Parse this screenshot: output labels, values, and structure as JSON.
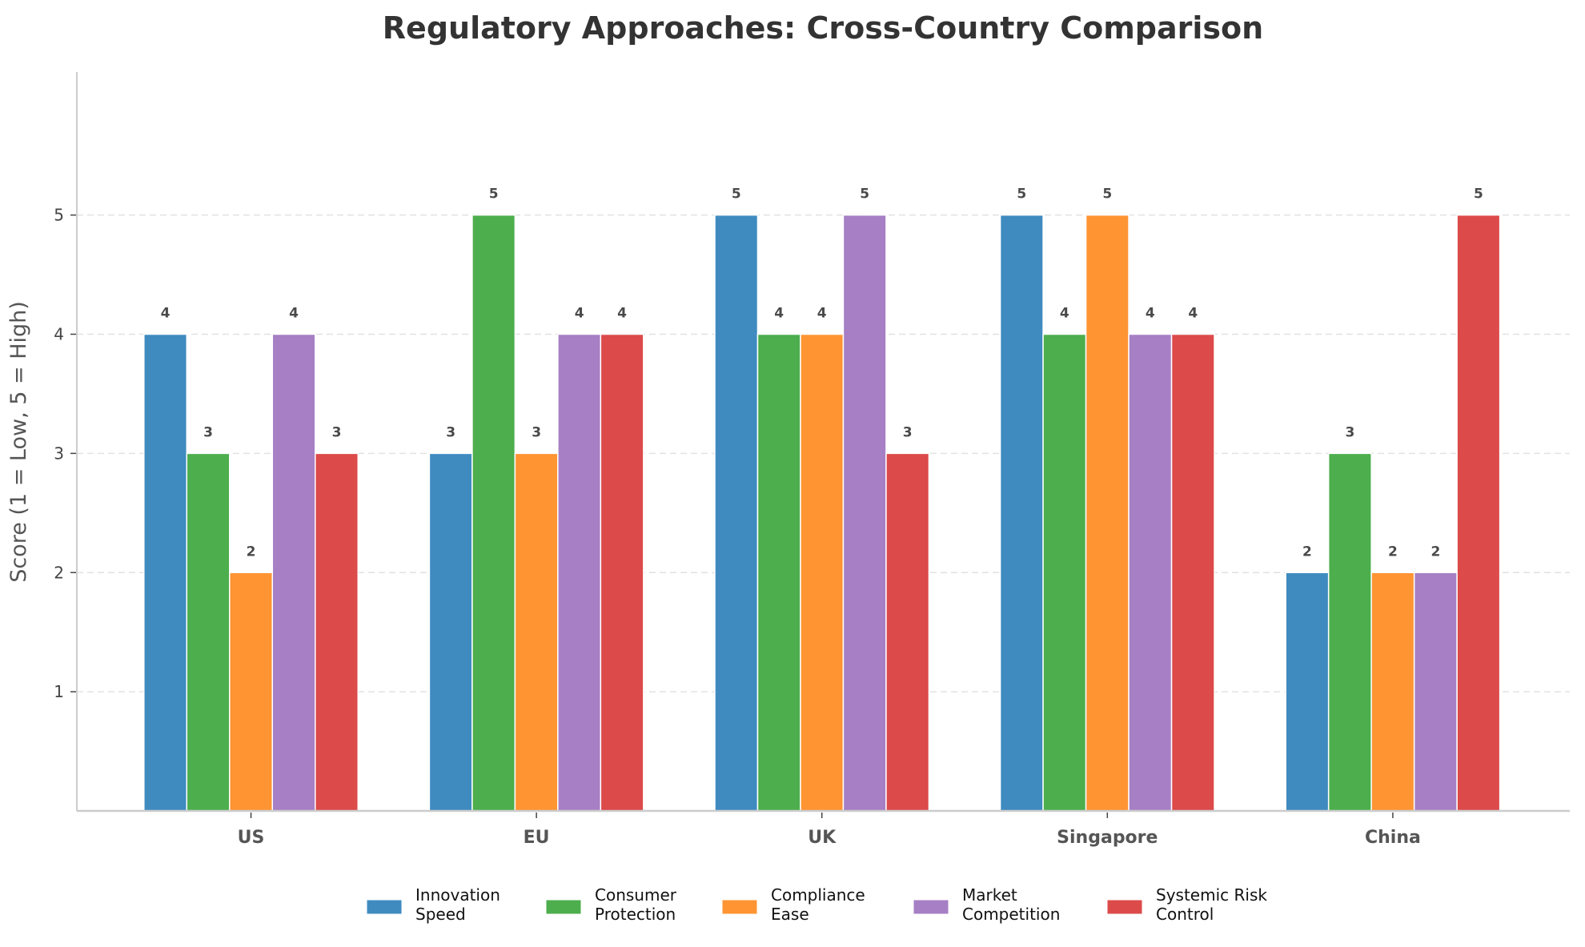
{
  "chart_data": {
    "type": "bar",
    "title": "Regulatory Approaches: Cross-Country Comparison",
    "xlabel": "",
    "ylabel": "Score (1 = Low, 5 = High)",
    "ylim": [
      0,
      6.2
    ],
    "yticks": [
      "1",
      "2",
      "3",
      "4",
      "5"
    ],
    "grid": "y dashed",
    "legend_position": "bottom-center",
    "categories": [
      "US",
      "EU",
      "UK",
      "Singapore",
      "China"
    ],
    "series": [
      {
        "name": "Innovation Speed",
        "legend_lines": [
          "Innovation",
          "Speed"
        ],
        "color": "#3f8bc0",
        "values": [
          4,
          3,
          5,
          5,
          2
        ]
      },
      {
        "name": "Consumer Protection",
        "legend_lines": [
          "Consumer",
          "Protection"
        ],
        "color": "#4cae4c",
        "values": [
          3,
          5,
          4,
          4,
          3
        ]
      },
      {
        "name": "Compliance Ease",
        "legend_lines": [
          "Compliance",
          "Ease"
        ],
        "color": "#ff9433",
        "values": [
          2,
          3,
          4,
          5,
          2
        ]
      },
      {
        "name": "Market Competition",
        "legend_lines": [
          "Market",
          "Competition"
        ],
        "color": "#a67fc4",
        "values": [
          4,
          4,
          5,
          4,
          2
        ]
      },
      {
        "name": "Systemic Risk Control",
        "legend_lines": [
          "Systemic Risk",
          "Control"
        ],
        "color": "#dc4a4a",
        "values": [
          3,
          4,
          3,
          4,
          5
        ]
      }
    ]
  }
}
